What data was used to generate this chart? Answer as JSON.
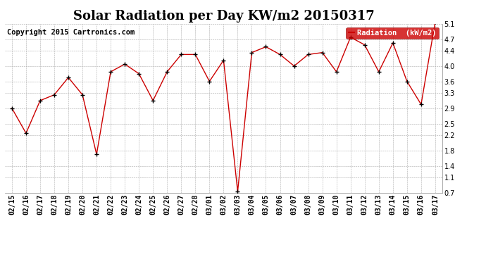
{
  "title": "Solar Radiation per Day KW/m2 20150317",
  "copyright_text": "Copyright 2015 Cartronics.com",
  "legend_label": "Radiation  (kW/m2)",
  "dates": [
    "02/15",
    "02/16",
    "02/17",
    "02/18",
    "02/19",
    "02/20",
    "02/21",
    "02/22",
    "02/23",
    "02/24",
    "02/25",
    "02/26",
    "02/27",
    "02/28",
    "03/01",
    "03/02",
    "03/03",
    "03/04",
    "03/05",
    "03/06",
    "03/07",
    "03/08",
    "03/09",
    "03/10",
    "03/11",
    "03/12",
    "03/13",
    "03/14",
    "03/15",
    "03/16",
    "03/17"
  ],
  "values": [
    2.9,
    2.25,
    3.1,
    3.25,
    3.7,
    3.25,
    1.7,
    3.85,
    4.05,
    3.8,
    3.1,
    3.85,
    4.3,
    4.3,
    3.6,
    4.15,
    0.73,
    4.35,
    4.5,
    4.3,
    4.0,
    4.3,
    4.35,
    3.85,
    4.75,
    4.55,
    3.85,
    4.6,
    3.6,
    3.0,
    5.15
  ],
  "line_color": "#cc0000",
  "marker_color": "#000000",
  "background_color": "#ffffff",
  "grid_color": "#aaaaaa",
  "ylim": [
    0.7,
    5.1
  ],
  "yticks": [
    0.7,
    1.1,
    1.4,
    1.8,
    2.2,
    2.5,
    2.9,
    3.3,
    3.6,
    4.0,
    4.4,
    4.7,
    5.1
  ],
  "legend_bg": "#cc0000",
  "legend_text_color": "#ffffff",
  "title_fontsize": 13,
  "tick_fontsize": 7,
  "copyright_fontsize": 7.5
}
